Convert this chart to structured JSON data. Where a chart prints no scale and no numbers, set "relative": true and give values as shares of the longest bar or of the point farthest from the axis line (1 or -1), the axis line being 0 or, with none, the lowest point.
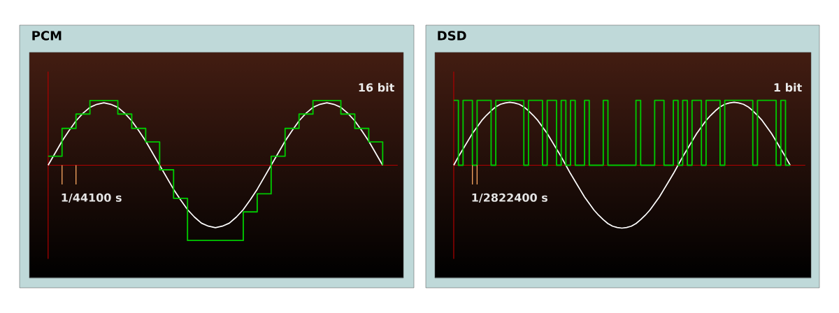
{
  "chart_data": [
    {
      "type": "line",
      "title": "PCM",
      "relative": true,
      "ref_lines": [
        {
          "axis": "y",
          "value": 0,
          "color": "#b00000"
        }
      ],
      "annotations": [
        "16 bit",
        "1/44100 s"
      ],
      "categories": [
        null,
        null,
        null,
        null,
        null,
        null,
        null,
        null,
        null,
        null,
        null,
        null,
        null,
        null,
        null,
        null,
        null,
        null,
        null,
        null,
        null,
        null,
        null,
        null,
        null,
        null,
        null,
        null,
        null,
        null,
        null,
        null,
        null,
        null,
        null,
        null,
        null,
        null,
        null,
        null,
        null,
        null,
        null,
        null,
        null,
        null,
        null,
        null,
        null
      ],
      "series": [
        {
          "color": "#ffffff",
          "values": [
            0,
            0.16,
            0.32,
            0.46,
            0.59,
            0.69,
            0.77,
            0.81,
            0.83,
            0.81,
            0.77,
            0.69,
            0.59,
            0.46,
            0.32,
            0.16,
            0,
            -0.16,
            -0.32,
            -0.46,
            -0.59,
            -0.69,
            -0.77,
            -0.81,
            -0.83,
            -0.81,
            -0.77,
            -0.69,
            -0.59,
            -0.46,
            -0.32,
            -0.16,
            0,
            0.16,
            0.32,
            0.46,
            0.59,
            0.69,
            0.77,
            0.81,
            0.83,
            0.81,
            0.77,
            0.69,
            0.59,
            0.46,
            0.32,
            0.16,
            0
          ]
        },
        {
          "type": "step",
          "color": "#00c800",
          "values": [
            0.12,
            0.12,
            0.49,
            0.49,
            0.68,
            0.68,
            0.86,
            0.86,
            0.86,
            0.86,
            0.68,
            0.68,
            0.49,
            0.49,
            0.31,
            0.31,
            -0.06,
            -0.06,
            -0.44,
            -0.44,
            -1,
            -1,
            -1,
            -1,
            -1,
            -1,
            -1,
            -1,
            -0.62,
            -0.62,
            -0.38,
            -0.38,
            0.12,
            0.12,
            0.49,
            0.49,
            0.68,
            0.68,
            0.86,
            0.86,
            0.86,
            0.86,
            0.68,
            0.68,
            0.49,
            0.49,
            0.31,
            0.31,
            0
          ]
        }
      ]
    },
    {
      "type": "line",
      "title": "DSD",
      "relative": true,
      "ref_lines": [
        {
          "axis": "y",
          "value": 0,
          "color": "#b00000"
        }
      ],
      "annotations": [
        "1 bit",
        "1/2822400 s"
      ],
      "categories": [
        null,
        null,
        null,
        null,
        null,
        null,
        null,
        null,
        null,
        null,
        null,
        null,
        null,
        null,
        null,
        null,
        null,
        null,
        null,
        null,
        null,
        null,
        null,
        null,
        null,
        null,
        null,
        null,
        null,
        null,
        null,
        null,
        null,
        null,
        null,
        null,
        null,
        null,
        null,
        null,
        null,
        null,
        null,
        null,
        null,
        null,
        null,
        null,
        null,
        null,
        null,
        null,
        null,
        null,
        null,
        null,
        null,
        null,
        null,
        null,
        null,
        null,
        null,
        null,
        null,
        null,
        null,
        null,
        null,
        null,
        null,
        null,
        null
      ],
      "series": [
        {
          "color": "#ffffff",
          "values": [
            0,
            0.13,
            0.25,
            0.37,
            0.49,
            0.59,
            0.69,
            0.77,
            0.84,
            0.9,
            0.94,
            0.96,
            0.97,
            0.96,
            0.94,
            0.9,
            0.84,
            0.77,
            0.69,
            0.59,
            0.49,
            0.37,
            0.25,
            0.13,
            0,
            -0.13,
            -0.25,
            -0.37,
            -0.49,
            -0.59,
            -0.69,
            -0.77,
            -0.84,
            -0.9,
            -0.94,
            -0.96,
            -0.97,
            -0.96,
            -0.94,
            -0.9,
            -0.84,
            -0.77,
            -0.69,
            -0.59,
            -0.49,
            -0.37,
            -0.25,
            -0.13,
            0,
            0.13,
            0.25,
            0.37,
            0.49,
            0.59,
            0.69,
            0.77,
            0.84,
            0.9,
            0.94,
            0.96,
            0.97,
            0.96,
            0.94,
            0.9,
            0.84,
            0.77,
            0.69,
            0.59,
            0.49,
            0.37,
            0.25,
            0.13,
            0
          ]
        },
        {
          "type": "step",
          "color": "#00c800",
          "values": [
            1,
            0,
            1,
            1,
            0,
            1,
            1,
            1,
            0,
            1,
            1,
            1,
            1,
            1,
            1,
            0,
            1,
            1,
            1,
            0,
            1,
            1,
            0,
            1,
            0,
            1,
            0,
            0,
            1,
            0,
            0,
            0,
            1,
            0,
            0,
            0,
            0,
            0,
            0,
            1,
            0,
            0,
            0,
            1,
            1,
            0,
            0,
            1,
            0,
            1,
            0,
            1,
            1,
            0,
            1,
            1,
            1,
            0,
            1,
            1,
            1,
            1,
            1,
            1,
            0,
            1,
            1,
            1,
            1,
            0,
            1,
            0,
            0
          ]
        }
      ]
    }
  ]
}
